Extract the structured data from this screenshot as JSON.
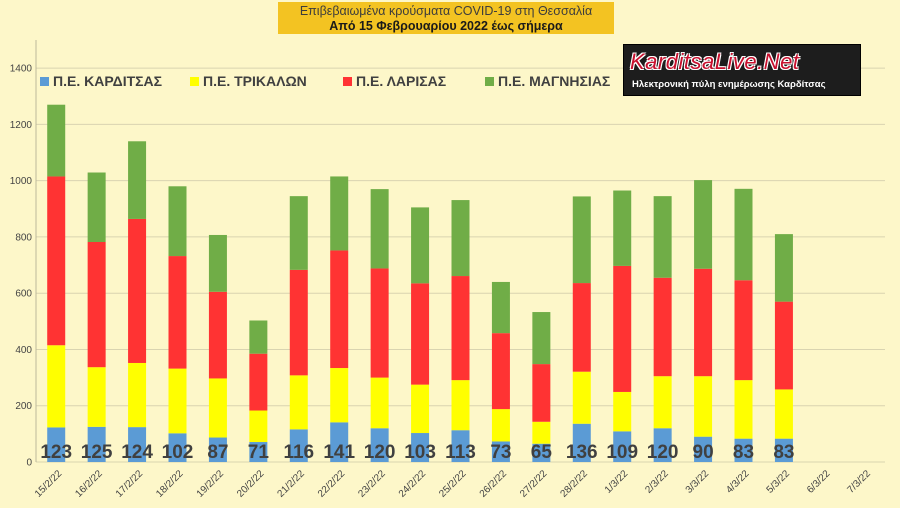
{
  "header": {
    "title": "Επιβεβαιωμένα κρούσματα COVID-19 στη Θεσσαλία",
    "subtitle": "Από 15 Φεβρουαρίου 2022 έως σήμερα"
  },
  "logo": {
    "name": "KarditsaLive.Net",
    "tagline": "Ηλεκτρονική πύλη ενημέρωσης Καρδίτσας"
  },
  "colors": {
    "background": "#fdf7c9",
    "grid": "#d9d4b0"
  },
  "chart_data": {
    "type": "bar",
    "stacked": true,
    "title": "Επιβεβαιωμένα κρούσματα COVID-19 στη Θεσσαλία",
    "xlabel": "",
    "ylabel": "",
    "ylim": [
      0,
      1500
    ],
    "yticks": [
      0,
      200,
      400,
      600,
      800,
      1000,
      1200,
      1400
    ],
    "grid": true,
    "legend_position": "top-left",
    "categories": [
      "15/2/22",
      "16/2/22",
      "17/2/22",
      "18/2/22",
      "19/2/22",
      "20/2/22",
      "21/2/22",
      "22/2/22",
      "23/2/22",
      "24/2/22",
      "25/2/22",
      "26/2/22",
      "27/2/22",
      "28/2/22",
      "1/3/22",
      "2/3/22",
      "3/3/22",
      "4/3/22",
      "5/3/22",
      "6/3/22",
      "7/3/22"
    ],
    "series": [
      {
        "name": "Π.Ε. ΚΑΡΔΙΤΣΑΣ",
        "color": "#5b9bd5",
        "values": [
          123,
          125,
          124,
          102,
          87,
          71,
          116,
          141,
          120,
          103,
          113,
          73,
          65,
          136,
          109,
          120,
          90,
          83,
          83,
          null,
          null
        ]
      },
      {
        "name": "Π.Ε. ΤΡΙΚΑΛΩΝ",
        "color": "#ffff00",
        "values": [
          292,
          212,
          228,
          230,
          210,
          112,
          192,
          193,
          180,
          172,
          178,
          115,
          78,
          185,
          140,
          185,
          215,
          208,
          175,
          null,
          null
        ]
      },
      {
        "name": "Π.Ε. ΛΑΡΙΣΑΣ",
        "color": "#ff3333",
        "values": [
          600,
          445,
          512,
          400,
          308,
          202,
          375,
          418,
          388,
          360,
          370,
          270,
          205,
          315,
          448,
          350,
          382,
          355,
          312,
          null,
          null
        ]
      },
      {
        "name": "Π.Ε. ΜΑΓΝΗΣΙΑΣ",
        "color": "#70ad47",
        "values": [
          255,
          247,
          276,
          248,
          202,
          118,
          262,
          263,
          282,
          270,
          270,
          182,
          185,
          308,
          268,
          290,
          315,
          325,
          240,
          null,
          null
        ]
      }
    ],
    "data_labels": [
      "123",
      "125",
      "124",
      "102",
      "87",
      "71",
      "116",
      "141",
      "120",
      "103",
      "113",
      "73",
      "65",
      "136",
      "109",
      "120",
      "90",
      "83",
      "83",
      "",
      ""
    ]
  }
}
